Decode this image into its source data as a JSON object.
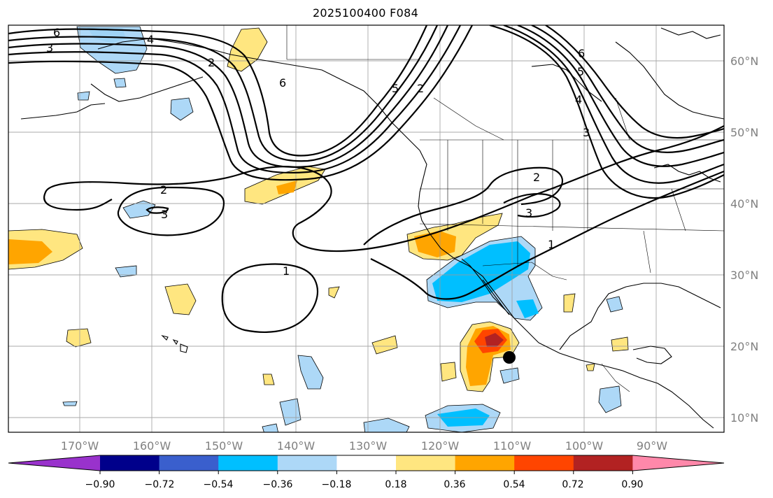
{
  "title": "2025100400 F084",
  "longitude_labels": [
    "170°W",
    "160°W",
    "150°W",
    "140°W",
    "130°W",
    "120°W",
    "110°W",
    "100°W",
    "90°W"
  ],
  "latitude_labels": [
    "60°N",
    "50°N",
    "40°N",
    "30°N",
    "20°N",
    "10°N"
  ],
  "colorbar": {
    "ticks": [
      "−0.90",
      "−0.72",
      "−0.54",
      "−0.36",
      "−0.18",
      "0.18",
      "0.36",
      "0.54",
      "0.72",
      "0.90"
    ],
    "colors": [
      "#9932cc",
      "#00008b",
      "#3a5fcd",
      "#00bfff",
      "#add8f7",
      "#ffffff",
      "#ffe680",
      "#ffa500",
      "#ff4500",
      "#b22222",
      "#ff88aa"
    ]
  },
  "contour_labels": {
    "c1a": "1",
    "c1b": "1",
    "c2a": "2",
    "c2b": "2",
    "c2c": "2",
    "c2d": "2",
    "c3a": "3",
    "c3b": "3",
    "c3c": "3",
    "c3d": "3",
    "c4a": "4",
    "c4b": "4",
    "c5a": "5",
    "c5b": "5",
    "c6a": "6",
    "c6b": "6",
    "c6c": "6"
  },
  "marker": {
    "lon": "110°W",
    "lat": "18.5°N"
  }
}
